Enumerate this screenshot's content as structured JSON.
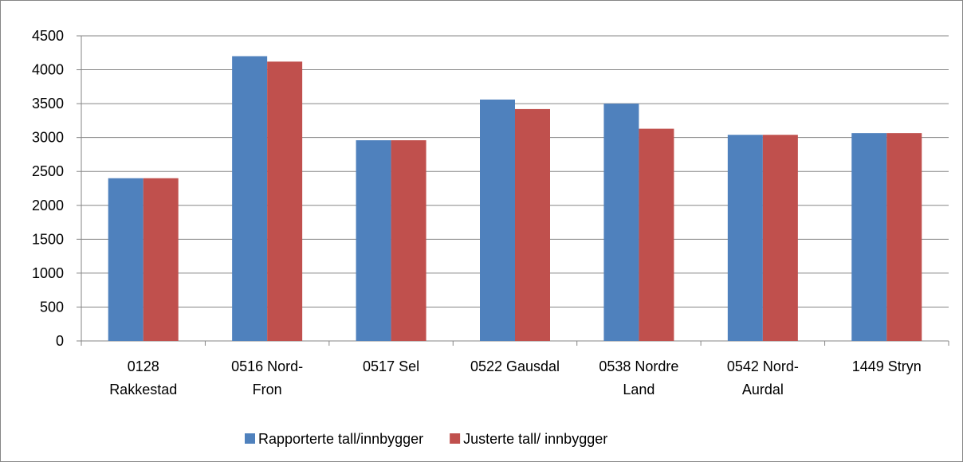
{
  "chart_data": {
    "type": "bar",
    "categories": [
      [
        "0128",
        "Rakkestad"
      ],
      [
        "0516 Nord-",
        "Fron"
      ],
      [
        "0517 Sel"
      ],
      [
        "0522 Gausdal"
      ],
      [
        "0538 Nordre",
        "Land"
      ],
      [
        "0542 Nord-",
        "Aurdal"
      ],
      [
        "1449 Stryn"
      ]
    ],
    "series": [
      {
        "name": "Rapporterte tall/innbygger",
        "color": "#4f81bd",
        "values": [
          2400,
          4200,
          2960,
          3560,
          3500,
          3040,
          3065
        ]
      },
      {
        "name": "Justerte tall/ innbygger",
        "color": "#c0504d",
        "values": [
          2400,
          4120,
          2960,
          3420,
          3130,
          3040,
          3065
        ]
      }
    ],
    "ylim": [
      0,
      4500
    ],
    "yticks": [
      0,
      500,
      1000,
      1500,
      2000,
      2500,
      3000,
      3500,
      4000,
      4500
    ],
    "grid": true,
    "legend": "bottom"
  }
}
